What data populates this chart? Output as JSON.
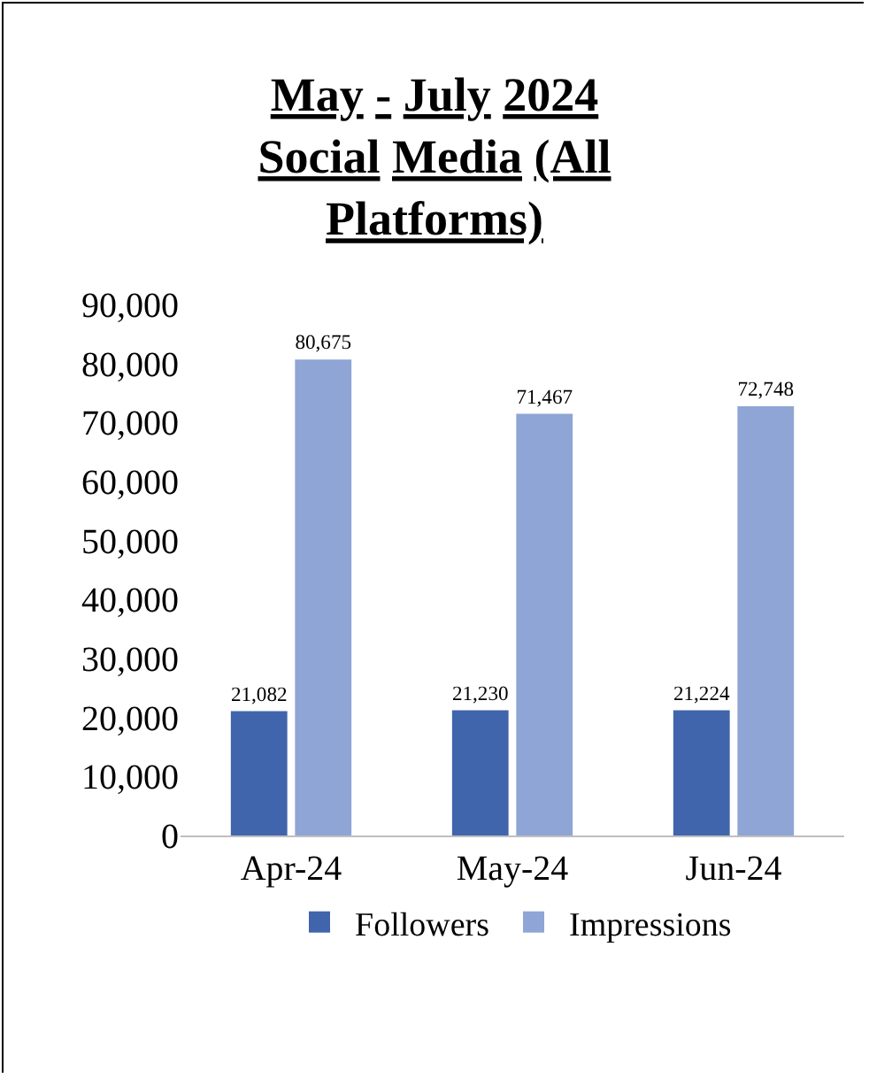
{
  "chart_data": {
    "type": "bar",
    "title": "May - July 2024 Social Media (All Platforms)",
    "categories": [
      "Apr-24",
      "May-24",
      "Jun-24"
    ],
    "series": [
      {
        "name": "Followers",
        "color": "#4165ad",
        "values": [
          21082,
          21230,
          21224
        ],
        "value_labels": [
          "21,082",
          "21,230",
          "21,224"
        ]
      },
      {
        "name": "Impressions",
        "color": "#8fa5d6",
        "values": [
          80675,
          71467,
          72748
        ],
        "value_labels": [
          "80,675",
          "71,467",
          "72,748"
        ]
      }
    ],
    "ylim": [
      0,
      90000
    ],
    "yticks": [
      {
        "value": 0,
        "label": "0"
      },
      {
        "value": 10000,
        "label": "10,000"
      },
      {
        "value": 20000,
        "label": "20,000"
      },
      {
        "value": 30000,
        "label": "30,000"
      },
      {
        "value": 40000,
        "label": "40,000"
      },
      {
        "value": 50000,
        "label": "50,000"
      },
      {
        "value": 60000,
        "label": "60,000"
      },
      {
        "value": 70000,
        "label": "70,000"
      },
      {
        "value": 80000,
        "label": "80,000"
      },
      {
        "value": 90000,
        "label": "90,000"
      }
    ],
    "grid": false,
    "legend": "bottom"
  }
}
